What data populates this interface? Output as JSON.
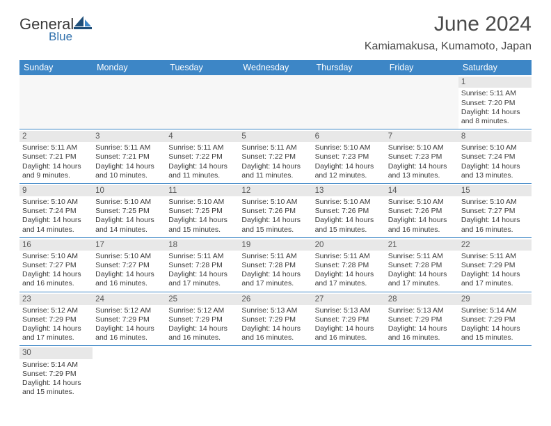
{
  "logo": {
    "brand_main": "General",
    "brand_sub": "Blue"
  },
  "header": {
    "month_title": "June 2024",
    "location": "Kamiamakusa, Kumamoto, Japan"
  },
  "theme": {
    "header_bg": "#3d86c6",
    "rule_color": "#3d86c6",
    "daynum_bg": "#e8e8e8",
    "text_color": "#3a3a3a"
  },
  "weekdays": [
    "Sunday",
    "Monday",
    "Tuesday",
    "Wednesday",
    "Thursday",
    "Friday",
    "Saturday"
  ],
  "weeks": [
    [
      {
        "empty": true
      },
      {
        "empty": true
      },
      {
        "empty": true
      },
      {
        "empty": true
      },
      {
        "empty": true
      },
      {
        "empty": true
      },
      {
        "day": "1",
        "sunrise": "Sunrise: 5:11 AM",
        "sunset": "Sunset: 7:20 PM",
        "daylight": "Daylight: 14 hours and 8 minutes."
      }
    ],
    [
      {
        "day": "2",
        "sunrise": "Sunrise: 5:11 AM",
        "sunset": "Sunset: 7:21 PM",
        "daylight": "Daylight: 14 hours and 9 minutes."
      },
      {
        "day": "3",
        "sunrise": "Sunrise: 5:11 AM",
        "sunset": "Sunset: 7:21 PM",
        "daylight": "Daylight: 14 hours and 10 minutes."
      },
      {
        "day": "4",
        "sunrise": "Sunrise: 5:11 AM",
        "sunset": "Sunset: 7:22 PM",
        "daylight": "Daylight: 14 hours and 11 minutes."
      },
      {
        "day": "5",
        "sunrise": "Sunrise: 5:11 AM",
        "sunset": "Sunset: 7:22 PM",
        "daylight": "Daylight: 14 hours and 11 minutes."
      },
      {
        "day": "6",
        "sunrise": "Sunrise: 5:10 AM",
        "sunset": "Sunset: 7:23 PM",
        "daylight": "Daylight: 14 hours and 12 minutes."
      },
      {
        "day": "7",
        "sunrise": "Sunrise: 5:10 AM",
        "sunset": "Sunset: 7:23 PM",
        "daylight": "Daylight: 14 hours and 13 minutes."
      },
      {
        "day": "8",
        "sunrise": "Sunrise: 5:10 AM",
        "sunset": "Sunset: 7:24 PM",
        "daylight": "Daylight: 14 hours and 13 minutes."
      }
    ],
    [
      {
        "day": "9",
        "sunrise": "Sunrise: 5:10 AM",
        "sunset": "Sunset: 7:24 PM",
        "daylight": "Daylight: 14 hours and 14 minutes."
      },
      {
        "day": "10",
        "sunrise": "Sunrise: 5:10 AM",
        "sunset": "Sunset: 7:25 PM",
        "daylight": "Daylight: 14 hours and 14 minutes."
      },
      {
        "day": "11",
        "sunrise": "Sunrise: 5:10 AM",
        "sunset": "Sunset: 7:25 PM",
        "daylight": "Daylight: 14 hours and 15 minutes."
      },
      {
        "day": "12",
        "sunrise": "Sunrise: 5:10 AM",
        "sunset": "Sunset: 7:26 PM",
        "daylight": "Daylight: 14 hours and 15 minutes."
      },
      {
        "day": "13",
        "sunrise": "Sunrise: 5:10 AM",
        "sunset": "Sunset: 7:26 PM",
        "daylight": "Daylight: 14 hours and 15 minutes."
      },
      {
        "day": "14",
        "sunrise": "Sunrise: 5:10 AM",
        "sunset": "Sunset: 7:26 PM",
        "daylight": "Daylight: 14 hours and 16 minutes."
      },
      {
        "day": "15",
        "sunrise": "Sunrise: 5:10 AM",
        "sunset": "Sunset: 7:27 PM",
        "daylight": "Daylight: 14 hours and 16 minutes."
      }
    ],
    [
      {
        "day": "16",
        "sunrise": "Sunrise: 5:10 AM",
        "sunset": "Sunset: 7:27 PM",
        "daylight": "Daylight: 14 hours and 16 minutes."
      },
      {
        "day": "17",
        "sunrise": "Sunrise: 5:10 AM",
        "sunset": "Sunset: 7:27 PM",
        "daylight": "Daylight: 14 hours and 16 minutes."
      },
      {
        "day": "18",
        "sunrise": "Sunrise: 5:11 AM",
        "sunset": "Sunset: 7:28 PM",
        "daylight": "Daylight: 14 hours and 17 minutes."
      },
      {
        "day": "19",
        "sunrise": "Sunrise: 5:11 AM",
        "sunset": "Sunset: 7:28 PM",
        "daylight": "Daylight: 14 hours and 17 minutes."
      },
      {
        "day": "20",
        "sunrise": "Sunrise: 5:11 AM",
        "sunset": "Sunset: 7:28 PM",
        "daylight": "Daylight: 14 hours and 17 minutes."
      },
      {
        "day": "21",
        "sunrise": "Sunrise: 5:11 AM",
        "sunset": "Sunset: 7:28 PM",
        "daylight": "Daylight: 14 hours and 17 minutes."
      },
      {
        "day": "22",
        "sunrise": "Sunrise: 5:11 AM",
        "sunset": "Sunset: 7:29 PM",
        "daylight": "Daylight: 14 hours and 17 minutes."
      }
    ],
    [
      {
        "day": "23",
        "sunrise": "Sunrise: 5:12 AM",
        "sunset": "Sunset: 7:29 PM",
        "daylight": "Daylight: 14 hours and 17 minutes."
      },
      {
        "day": "24",
        "sunrise": "Sunrise: 5:12 AM",
        "sunset": "Sunset: 7:29 PM",
        "daylight": "Daylight: 14 hours and 16 minutes."
      },
      {
        "day": "25",
        "sunrise": "Sunrise: 5:12 AM",
        "sunset": "Sunset: 7:29 PM",
        "daylight": "Daylight: 14 hours and 16 minutes."
      },
      {
        "day": "26",
        "sunrise": "Sunrise: 5:13 AM",
        "sunset": "Sunset: 7:29 PM",
        "daylight": "Daylight: 14 hours and 16 minutes."
      },
      {
        "day": "27",
        "sunrise": "Sunrise: 5:13 AM",
        "sunset": "Sunset: 7:29 PM",
        "daylight": "Daylight: 14 hours and 16 minutes."
      },
      {
        "day": "28",
        "sunrise": "Sunrise: 5:13 AM",
        "sunset": "Sunset: 7:29 PM",
        "daylight": "Daylight: 14 hours and 16 minutes."
      },
      {
        "day": "29",
        "sunrise": "Sunrise: 5:14 AM",
        "sunset": "Sunset: 7:29 PM",
        "daylight": "Daylight: 14 hours and 15 minutes."
      }
    ],
    [
      {
        "day": "30",
        "sunrise": "Sunrise: 5:14 AM",
        "sunset": "Sunset: 7:29 PM",
        "daylight": "Daylight: 14 hours and 15 minutes."
      },
      {
        "empty": true
      },
      {
        "empty": true
      },
      {
        "empty": true
      },
      {
        "empty": true
      },
      {
        "empty": true
      },
      {
        "empty": true
      }
    ]
  ]
}
